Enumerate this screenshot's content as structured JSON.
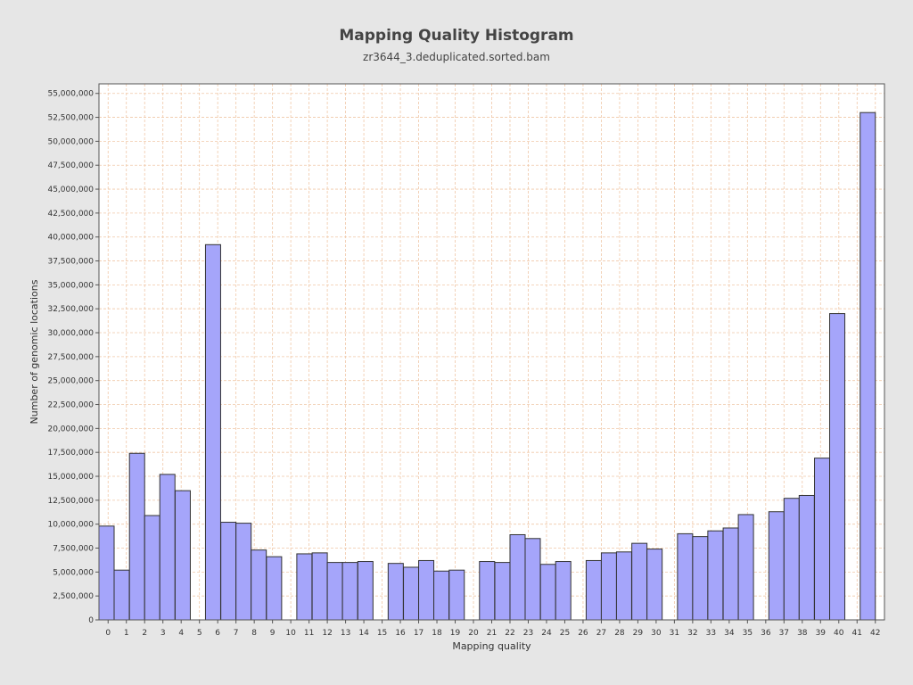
{
  "chart_data": {
    "type": "bar",
    "title": "Mapping Quality Histogram",
    "subtitle": "zr3644_3.deduplicated.sorted.bam",
    "xlabel": "Mapping quality",
    "ylabel": "Number of genomic locations",
    "xlim": [
      -0.5,
      42.5
    ],
    "ylim": [
      0,
      56000000
    ],
    "x_ticks": [
      0,
      1,
      2,
      3,
      4,
      5,
      6,
      7,
      8,
      9,
      10,
      11,
      12,
      13,
      14,
      15,
      16,
      17,
      18,
      19,
      20,
      21,
      22,
      23,
      24,
      25,
      26,
      27,
      28,
      29,
      30,
      31,
      32,
      33,
      34,
      35,
      36,
      37,
      38,
      39,
      40,
      41,
      42
    ],
    "y_ticks": [
      0,
      2500000,
      5000000,
      7500000,
      10000000,
      12500000,
      15000000,
      17500000,
      20000000,
      22500000,
      25000000,
      27500000,
      30000000,
      32500000,
      35000000,
      37500000,
      40000000,
      42500000,
      45000000,
      47500000,
      50000000,
      52500000,
      55000000
    ],
    "y_tick_labels": [
      "0",
      "2,500,000",
      "5,000,000",
      "7,500,000",
      "10,000,000",
      "12,500,000",
      "15,000,000",
      "17,500,000",
      "20,000,000",
      "22,500,000",
      "25,000,000",
      "27,500,000",
      "30,000,000",
      "32,500,000",
      "35,000,000",
      "37,500,000",
      "40,000,000",
      "42,500,000",
      "45,000,000",
      "47,500,000",
      "50,000,000",
      "52,500,000",
      "55,000,000"
    ],
    "bars": [
      {
        "x": 0.0,
        "value": 9800000
      },
      {
        "x": 0.83,
        "value": 5200000
      },
      {
        "x": 1.67,
        "value": 17400000
      },
      {
        "x": 2.5,
        "value": 10900000
      },
      {
        "x": 3.33,
        "value": 15200000
      },
      {
        "x": 4.17,
        "value": 13500000
      },
      {
        "x": 5.83,
        "value": 39200000
      },
      {
        "x": 6.67,
        "value": 10200000
      },
      {
        "x": 7.5,
        "value": 10100000
      },
      {
        "x": 8.33,
        "value": 7300000
      },
      {
        "x": 9.17,
        "value": 6600000
      },
      {
        "x": 10.83,
        "value": 6900000
      },
      {
        "x": 11.67,
        "value": 7000000
      },
      {
        "x": 12.5,
        "value": 6000000
      },
      {
        "x": 13.33,
        "value": 6000000
      },
      {
        "x": 14.17,
        "value": 6100000
      },
      {
        "x": 15.83,
        "value": 5900000
      },
      {
        "x": 16.67,
        "value": 5500000
      },
      {
        "x": 17.5,
        "value": 6200000
      },
      {
        "x": 18.33,
        "value": 5100000
      },
      {
        "x": 19.17,
        "value": 5200000
      },
      {
        "x": 20.83,
        "value": 6100000
      },
      {
        "x": 21.67,
        "value": 6000000
      },
      {
        "x": 22.5,
        "value": 8900000
      },
      {
        "x": 23.33,
        "value": 8500000
      },
      {
        "x": 24.17,
        "value": 5800000
      },
      {
        "x": 25.0,
        "value": 6100000
      },
      {
        "x": 26.67,
        "value": 6200000
      },
      {
        "x": 27.5,
        "value": 7000000
      },
      {
        "x": 28.33,
        "value": 7100000
      },
      {
        "x": 29.17,
        "value": 8000000
      },
      {
        "x": 30.0,
        "value": 7400000
      },
      {
        "x": 31.67,
        "value": 9000000
      },
      {
        "x": 32.5,
        "value": 8700000
      },
      {
        "x": 33.33,
        "value": 9300000
      },
      {
        "x": 34.17,
        "value": 9600000
      },
      {
        "x": 35.0,
        "value": 11000000
      },
      {
        "x": 36.67,
        "value": 11300000
      },
      {
        "x": 37.5,
        "value": 12700000
      },
      {
        "x": 38.33,
        "value": 13000000
      },
      {
        "x": 39.17,
        "value": 16900000
      },
      {
        "x": 40.0,
        "value": 32000000
      },
      {
        "x": 41.67,
        "value": 53000000
      }
    ],
    "bar_width": 0.83,
    "grid": true,
    "legend": "none",
    "colors": {
      "background": "#e6e6e6",
      "plot_background": "#ffffff",
      "bar_fill": "#a5a5fa",
      "bar_stroke": "#333333",
      "grid": "#f0c8a8"
    }
  }
}
